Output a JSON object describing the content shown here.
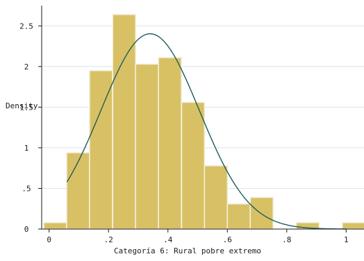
{
  "chart_data": {
    "type": "bar",
    "title": "",
    "xlabel": "Categoría 6: Rural pobre extremo",
    "ylabel": "Density",
    "xlim": [
      -0.025,
      1.06
    ],
    "ylim": [
      0,
      2.75
    ],
    "x_ticks": [
      "0",
      ".2",
      ".4",
      ".6",
      ".8",
      "1"
    ],
    "x_tick_values": [
      0,
      0.2,
      0.4,
      0.6,
      0.8,
      1
    ],
    "y_ticks": [
      "0",
      ".5",
      "1",
      "1.5",
      "2",
      "2.5"
    ],
    "y_tick_values": [
      0,
      0.5,
      1,
      1.5,
      2,
      2.5
    ],
    "grid": "horizontal",
    "legend": "none",
    "series": [
      {
        "type": "histogram",
        "bin_width": 0.0773,
        "bins": [
          {
            "start": -0.018,
            "density": 0.08
          },
          {
            "start": 0.059,
            "density": 0.94
          },
          {
            "start": 0.136,
            "density": 1.95
          },
          {
            "start": 0.214,
            "density": 2.64
          },
          {
            "start": 0.291,
            "density": 2.03
          },
          {
            "start": 0.368,
            "density": 2.11
          },
          {
            "start": 0.446,
            "density": 1.56
          },
          {
            "start": 0.523,
            "density": 0.78
          },
          {
            "start": 0.6,
            "density": 0.31
          },
          {
            "start": 0.677,
            "density": 0.39
          },
          {
            "start": 0.755,
            "density": 0.0
          },
          {
            "start": 0.832,
            "density": 0.08
          },
          {
            "start": 0.909,
            "density": 0.0
          },
          {
            "start": 0.987,
            "density": 0.08
          }
        ]
      },
      {
        "type": "normal_density",
        "mean": 0.34,
        "sd": 0.166,
        "x_range": [
          0.06,
          1.0
        ]
      }
    ],
    "colors": {
      "bar_fill": "#d8c165",
      "bar_edge": "#f4f0e0",
      "curve": "#1e5d5a",
      "grid": "#dbe3ee",
      "axis": "#1a1a1a"
    }
  }
}
